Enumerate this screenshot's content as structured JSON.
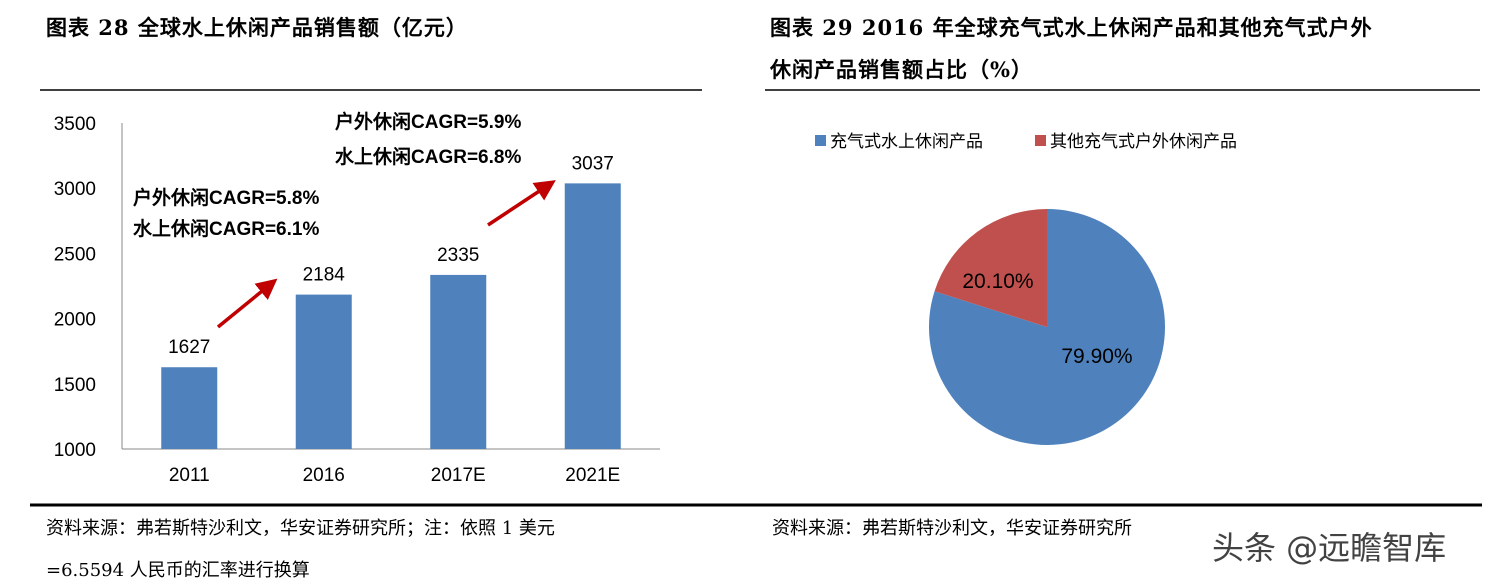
{
  "left_title": "图表 28 全球水上休闲产品销售额（亿元）",
  "right_title_line1": "图表 29 2016 年全球充气式水上休闲产品和其他充气式户外",
  "right_title_line2": "休闲产品销售额占比（%）",
  "left_source_line1": "资料来源：弗若斯特沙利文，华安证券研究所；注：依照 1 美元",
  "left_source_line2": "=6.5594 人民币的汇率进行换算",
  "right_source": "资料来源：弗若斯特沙利文，华安证券研究所",
  "watermark": "头条 @远瞻智库",
  "chart_data": [
    {
      "type": "bar",
      "categories": [
        "2011",
        "2016",
        "2017E",
        "2021E"
      ],
      "values": [
        1627,
        2184,
        2335,
        3037
      ],
      "data_labels": [
        "1627",
        "2184",
        "2335",
        "3037"
      ],
      "ylim": [
        1000,
        3500
      ],
      "yticks": [
        "1000",
        "1500",
        "2000",
        "2500",
        "3000",
        "3500"
      ],
      "grid": false,
      "color": "#4F81BD",
      "arrow_color": "#C00000",
      "annotations": [
        {
          "line1": "户外休闲CAGR=5.8%",
          "line2": "水上休闲CAGR=6.1%"
        },
        {
          "line1": "户外休闲CAGR=5.9%",
          "line2": "水上休闲CAGR=6.8%"
        }
      ]
    },
    {
      "type": "pie",
      "series": [
        {
          "name": "充气式水上休闲产品",
          "value": 79.9,
          "label": "79.90%",
          "color": "#4F81BD"
        },
        {
          "name": "其他充气式户外休闲产品",
          "value": 20.1,
          "label": "20.10%",
          "color": "#C0504D"
        }
      ],
      "legend": "top"
    }
  ]
}
